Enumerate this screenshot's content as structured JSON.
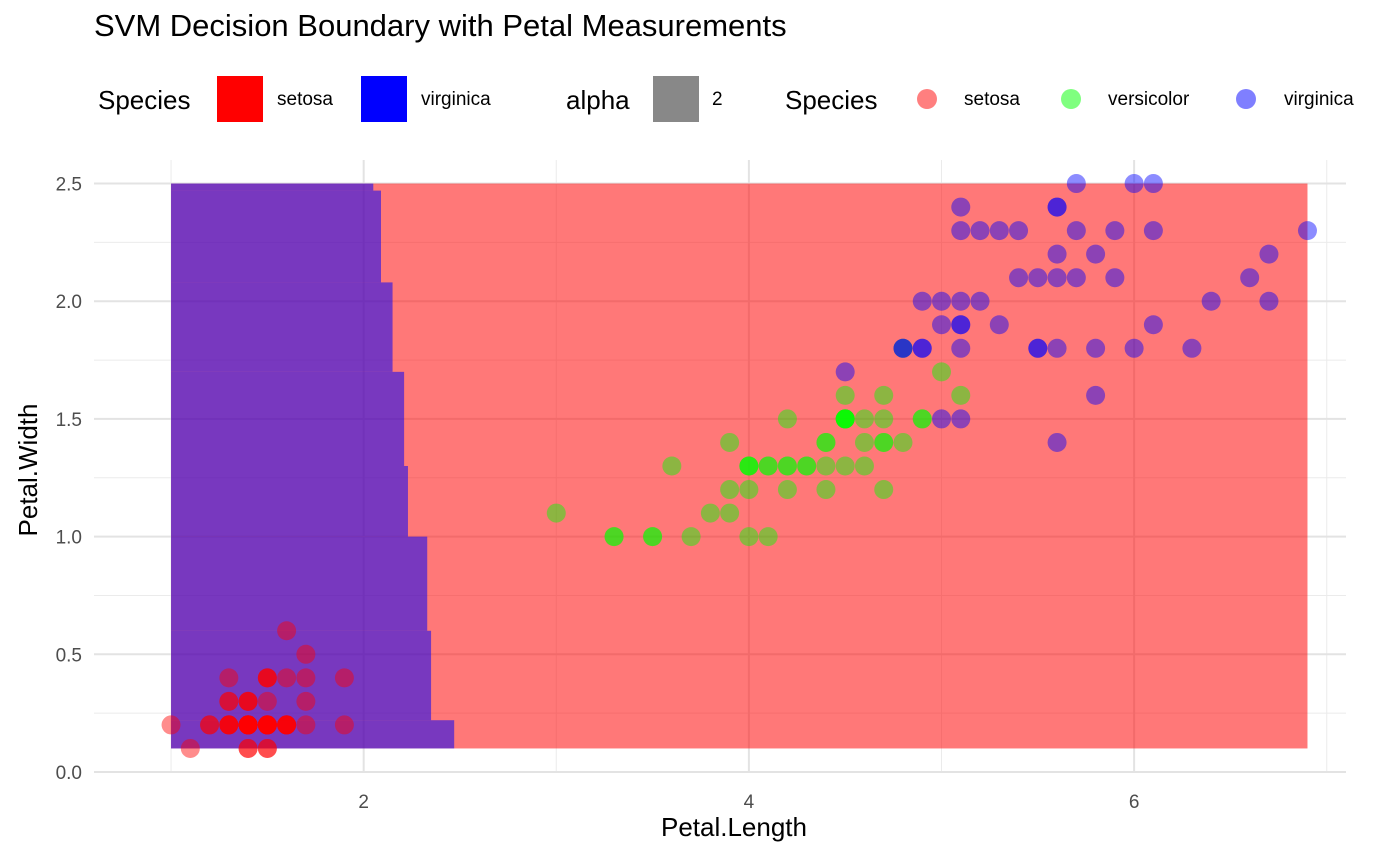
{
  "chart_data": {
    "type": "scatter",
    "title": "SVM Decision Boundary with Petal Measurements",
    "xlabel": "Petal.Length",
    "ylabel": "Petal.Width",
    "xlim": [
      0.6,
      7.1
    ],
    "ylim": [
      0,
      2.6
    ],
    "x_ticks": [
      2,
      4,
      6
    ],
    "x_tick_labels": [
      "2",
      "4",
      "6"
    ],
    "y_ticks": [
      0,
      0.5,
      1,
      1.5,
      2,
      2.5
    ],
    "y_tick_labels": [
      "0.0",
      "0.5",
      "1.0",
      "1.5",
      "2.0",
      "2.5"
    ],
    "grid": true,
    "legend_position": "top",
    "legends": {
      "fill": {
        "title": "Species",
        "items": [
          {
            "label": "setosa",
            "color": "#ff0000"
          },
          {
            "label": "virginica",
            "color": "#0000ff"
          }
        ]
      },
      "alpha": {
        "title": "alpha",
        "items": [
          {
            "label": "2",
            "color": "#888888"
          }
        ]
      },
      "color": {
        "title": "Species",
        "items": [
          {
            "label": "setosa",
            "color": "#ff0000"
          },
          {
            "label": "versicolor",
            "color": "#00ff00"
          },
          {
            "label": "virginica",
            "color": "#0000ff"
          }
        ]
      }
    },
    "decision_regions": {
      "x_range": [
        1.0,
        6.9
      ],
      "y_range": [
        0.1,
        2.5
      ],
      "left_class": "virginica",
      "right_class": "setosa",
      "left_color": "#0000ff",
      "right_color": "#ff0000",
      "boundary": [
        {
          "y": [
            0.1,
            0.22
          ],
          "x": 2.47
        },
        {
          "y": [
            0.22,
            0.6
          ],
          "x": 2.35
        },
        {
          "y": [
            0.6,
            1.0
          ],
          "x": 2.33
        },
        {
          "y": [
            1.0,
            1.3
          ],
          "x": 2.23
        },
        {
          "y": [
            1.3,
            1.7
          ],
          "x": 2.21
        },
        {
          "y": [
            1.7,
            2.08
          ],
          "x": 2.15
        },
        {
          "y": [
            2.08,
            2.47
          ],
          "x": 2.09
        },
        {
          "y": [
            2.47,
            2.5
          ],
          "x": 2.05
        }
      ]
    },
    "series": [
      {
        "name": "setosa",
        "color": "#ff0000",
        "x": [
          1.4,
          1.4,
          1.3,
          1.5,
          1.4,
          1.7,
          1.4,
          1.5,
          1.4,
          1.5,
          1.5,
          1.6,
          1.4,
          1.1,
          1.2,
          1.5,
          1.3,
          1.4,
          1.7,
          1.5,
          1.7,
          1.5,
          1.0,
          1.7,
          1.9,
          1.6,
          1.6,
          1.5,
          1.4,
          1.6,
          1.6,
          1.5,
          1.5,
          1.4,
          1.5,
          1.2,
          1.3,
          1.4,
          1.3,
          1.5,
          1.3,
          1.3,
          1.3,
          1.6,
          1.9,
          1.4,
          1.6,
          1.4,
          1.5,
          1.4
        ],
        "y": [
          0.2,
          0.2,
          0.2,
          0.2,
          0.2,
          0.4,
          0.3,
          0.2,
          0.2,
          0.1,
          0.2,
          0.2,
          0.1,
          0.1,
          0.2,
          0.4,
          0.4,
          0.3,
          0.3,
          0.3,
          0.2,
          0.4,
          0.2,
          0.5,
          0.2,
          0.2,
          0.4,
          0.2,
          0.2,
          0.2,
          0.2,
          0.4,
          0.1,
          0.2,
          0.2,
          0.2,
          0.2,
          0.1,
          0.2,
          0.2,
          0.3,
          0.3,
          0.2,
          0.6,
          0.4,
          0.3,
          0.2,
          0.2,
          0.2,
          0.2
        ]
      },
      {
        "name": "versicolor",
        "color": "#00ff00",
        "x": [
          4.7,
          4.5,
          4.9,
          4.0,
          4.6,
          4.5,
          4.7,
          3.3,
          4.6,
          3.9,
          3.5,
          4.2,
          4.0,
          4.7,
          3.6,
          4.4,
          4.5,
          4.1,
          4.5,
          3.9,
          4.8,
          4.0,
          4.9,
          4.7,
          4.3,
          4.4,
          4.8,
          5.0,
          4.5,
          3.5,
          3.8,
          3.7,
          3.9,
          5.1,
          4.5,
          4.5,
          4.7,
          4.4,
          4.1,
          4.0,
          4.4,
          4.6,
          4.0,
          3.3,
          4.2,
          4.2,
          4.2,
          4.3,
          3.0,
          4.1
        ],
        "y": [
          1.4,
          1.5,
          1.5,
          1.3,
          1.5,
          1.3,
          1.6,
          1.0,
          1.3,
          1.4,
          1.0,
          1.5,
          1.0,
          1.4,
          1.3,
          1.4,
          1.5,
          1.0,
          1.5,
          1.1,
          1.8,
          1.3,
          1.5,
          1.2,
          1.3,
          1.4,
          1.4,
          1.7,
          1.5,
          1.0,
          1.1,
          1.0,
          1.2,
          1.6,
          1.5,
          1.6,
          1.5,
          1.3,
          1.3,
          1.3,
          1.2,
          1.4,
          1.2,
          1.0,
          1.3,
          1.2,
          1.3,
          1.3,
          1.1,
          1.3
        ]
      },
      {
        "name": "virginica",
        "color": "#0000ff",
        "x": [
          6.0,
          5.1,
          5.9,
          5.6,
          5.8,
          6.6,
          4.5,
          6.3,
          5.8,
          6.1,
          5.1,
          5.3,
          5.5,
          5.0,
          5.1,
          5.3,
          5.5,
          6.7,
          6.9,
          5.0,
          5.7,
          4.9,
          6.7,
          4.9,
          5.7,
          6.0,
          4.8,
          4.9,
          5.6,
          5.8,
          6.1,
          6.4,
          5.6,
          5.1,
          5.6,
          6.1,
          5.6,
          5.5,
          4.8,
          5.4,
          5.6,
          5.1,
          5.1,
          5.9,
          5.7,
          5.2,
          5.0,
          5.2,
          5.4,
          5.1
        ],
        "y": [
          2.5,
          1.9,
          2.1,
          1.8,
          2.2,
          2.1,
          1.7,
          1.8,
          1.8,
          2.5,
          2.0,
          1.9,
          2.1,
          2.0,
          2.4,
          2.3,
          1.8,
          2.2,
          2.3,
          1.5,
          2.3,
          2.0,
          2.0,
          1.8,
          2.1,
          1.8,
          1.8,
          1.8,
          2.1,
          1.6,
          1.9,
          2.0,
          2.2,
          1.5,
          1.4,
          2.3,
          2.4,
          1.8,
          1.8,
          2.1,
          2.4,
          2.3,
          1.9,
          2.3,
          2.5,
          2.3,
          1.9,
          2.0,
          2.3,
          1.8
        ]
      }
    ]
  }
}
